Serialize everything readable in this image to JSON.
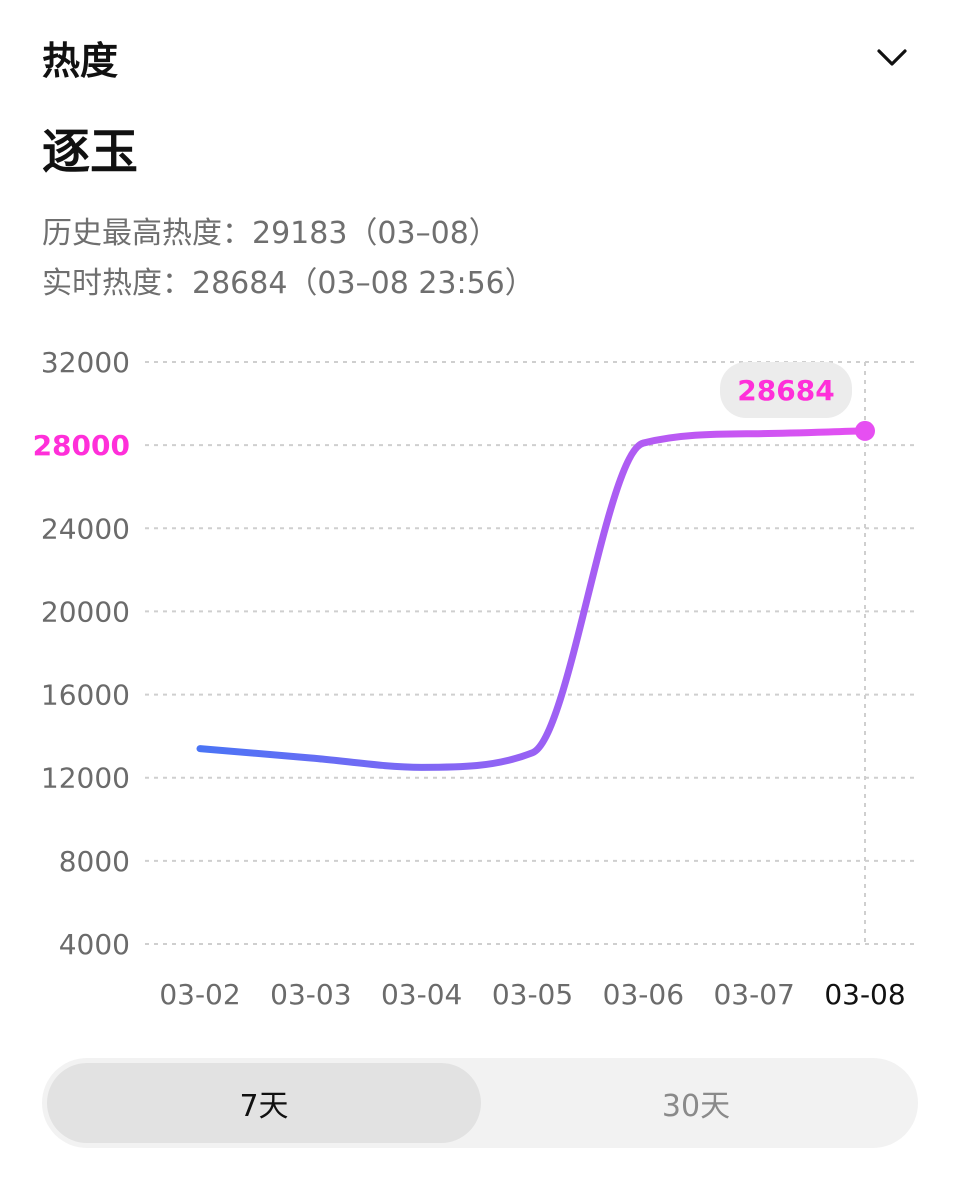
{
  "header": {
    "title": "热度"
  },
  "topic": {
    "title": "逐玉",
    "history_high": "历史最高热度：29183（03–08）",
    "realtime": "实时热度：28684（03–08 23:56）"
  },
  "colors": {
    "accent": "#ff2fd9",
    "line_start": "#4a74f5",
    "line_end": "#e64ff2",
    "grid": "#cfcfcf",
    "text_gray": "#6f6f6f"
  },
  "chart_data": {
    "type": "line",
    "x": [
      "03-02",
      "03-03",
      "03-04",
      "03-05",
      "03-06",
      "03-07",
      "03-08"
    ],
    "series": [
      {
        "values": [
          13400,
          12950,
          12500,
          13200,
          28100,
          28550,
          28684
        ]
      }
    ],
    "yticks": [
      32000,
      28000,
      24000,
      20000,
      16000,
      12000,
      8000,
      4000
    ],
    "ylim": [
      4000,
      32000
    ],
    "highlight_ytick": 28000,
    "annotation": "28684",
    "annotation_x": "03-08",
    "highlight_x": "03-08",
    "grid": true
  },
  "toggle": {
    "options": [
      "7天",
      "30天"
    ],
    "selected": "7天"
  }
}
